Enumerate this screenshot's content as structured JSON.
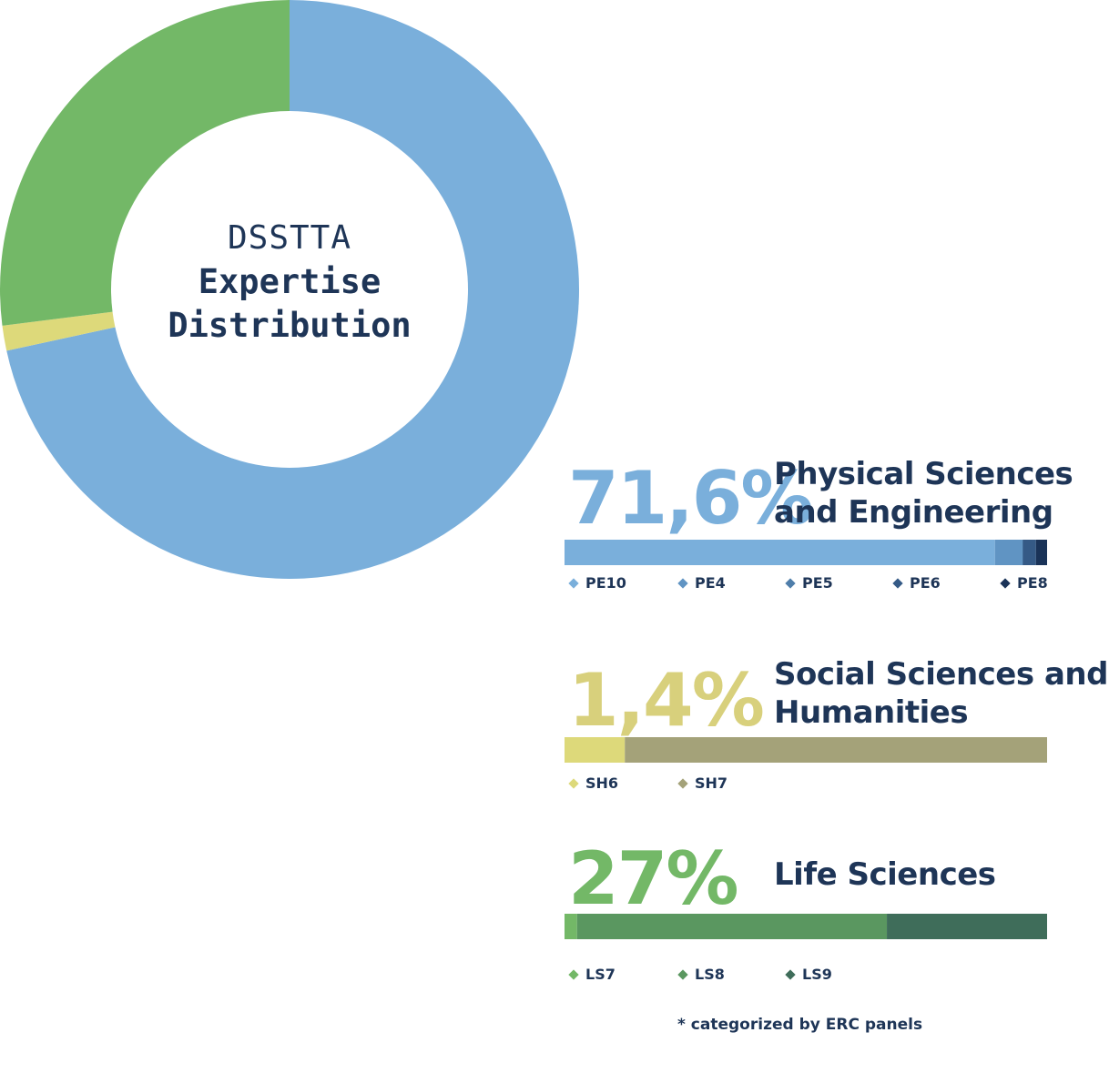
{
  "chart_data": [
    {
      "type": "pie",
      "title": "DSSTTA",
      "subtitle": "Expertise Distribution",
      "slices": [
        {
          "category": "Physical Sciences and Engineering",
          "value": 71.6,
          "color": "#7aafdb"
        },
        {
          "category": "Social Sciences and Humanities",
          "value": 1.4,
          "color": "#ddd97a"
        },
        {
          "category": "Life Sciences",
          "value": 27,
          "color": "#73b867"
        }
      ]
    },
    {
      "type": "bar",
      "orientation": "horizontal-stacked",
      "groups": [
        {
          "id": "pe",
          "percent_label": "71,6%",
          "value": 71.6,
          "title_lines": [
            "Physical Sciences",
            "and Engineering"
          ],
          "pct_color": "#7aafdb",
          "segments": [
            {
              "name": "PE10",
              "value": 89.2,
              "color": "#7aafdb"
            },
            {
              "name": "PE4",
              "value": 5.7,
              "color": "#6094c3"
            },
            {
              "name": "PE5",
              "value": 0.1,
              "color": "#4f7eaa"
            },
            {
              "name": "PE6",
              "value": 2.7,
              "color": "#355a86"
            },
            {
              "name": "PE8",
              "value": 2.3,
              "color": "#1a3358"
            }
          ]
        },
        {
          "id": "sh",
          "percent_label": "1,4%",
          "value": 1.4,
          "title_lines": [
            "Social Sciences and",
            "Humanities"
          ],
          "pct_color": "#d8d07c",
          "segments": [
            {
              "name": "SH6",
              "value": 12.5,
              "color": "#ddd97a"
            },
            {
              "name": "SH7",
              "value": 87.5,
              "color": "#a4a279"
            }
          ]
        },
        {
          "id": "ls",
          "percent_label": "27%",
          "value": 27,
          "title_lines": [
            "Life Sciences"
          ],
          "pct_color": "#73b867",
          "segments": [
            {
              "name": "LS7",
              "value": 2.6,
              "color": "#73b867"
            },
            {
              "name": "LS8",
              "value": 64.2,
              "color": "#5a9760"
            },
            {
              "name": "LS9",
              "value": 33.2,
              "color": "#3f6d5a"
            }
          ]
        }
      ]
    }
  ],
  "footnote": "* categorized by ERC panels"
}
